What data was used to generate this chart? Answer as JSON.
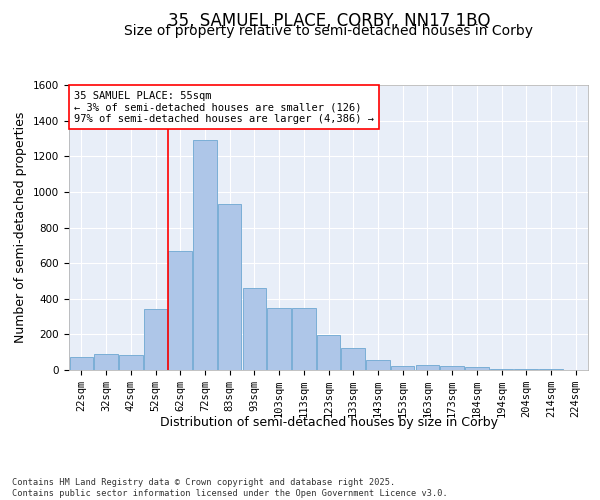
{
  "title_line1": "35, SAMUEL PLACE, CORBY, NN17 1BQ",
  "title_line2": "Size of property relative to semi-detached houses in Corby",
  "xlabel": "Distribution of semi-detached houses by size in Corby",
  "ylabel": "Number of semi-detached properties",
  "categories": [
    "22sqm",
    "32sqm",
    "42sqm",
    "52sqm",
    "62sqm",
    "72sqm",
    "83sqm",
    "93sqm",
    "103sqm",
    "113sqm",
    "123sqm",
    "133sqm",
    "143sqm",
    "153sqm",
    "163sqm",
    "173sqm",
    "184sqm",
    "194sqm",
    "204sqm",
    "214sqm",
    "224sqm"
  ],
  "values": [
    75,
    90,
    85,
    340,
    670,
    1290,
    930,
    460,
    350,
    350,
    195,
    125,
    55,
    25,
    30,
    20,
    15,
    5,
    3,
    5,
    2
  ],
  "bar_color": "#aec6e8",
  "bar_edge_color": "#7aaed6",
  "background_color": "#e8eef8",
  "grid_color": "#ffffff",
  "red_line_x": 3.5,
  "annotation_text": "35 SAMUEL PLACE: 55sqm\n← 3% of semi-detached houses are smaller (126)\n97% of semi-detached houses are larger (4,386) →",
  "ylim": [
    0,
    1600
  ],
  "yticks": [
    0,
    200,
    400,
    600,
    800,
    1000,
    1200,
    1400,
    1600
  ],
  "footer_text": "Contains HM Land Registry data © Crown copyright and database right 2025.\nContains public sector information licensed under the Open Government Licence v3.0.",
  "title_fontsize": 12,
  "subtitle_fontsize": 10,
  "axis_label_fontsize": 9,
  "tick_fontsize": 7.5,
  "annotation_fontsize": 7.5,
  "fig_bg": "#ffffff"
}
